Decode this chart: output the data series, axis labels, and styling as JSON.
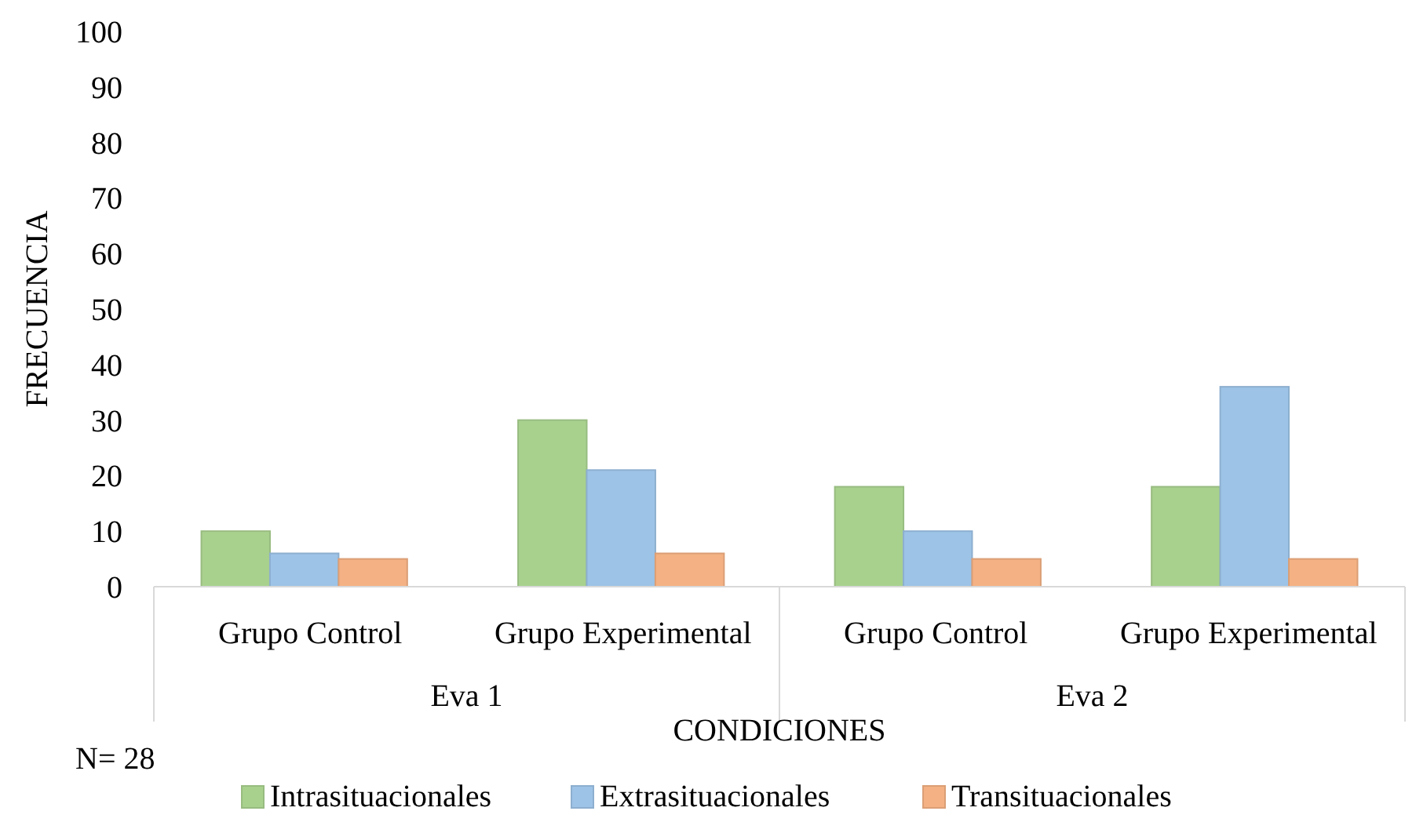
{
  "chart_data": {
    "type": "bar",
    "xlabel": "CONDICIONES",
    "ylabel": "FRECUENCIA",
    "categories": [
      "Grupo Control",
      "Grupo Experimental",
      "Grupo Control",
      "Grupo Experimental"
    ],
    "series": [
      {
        "name": "Intrasituacionales",
        "color": "#a9d18e",
        "values": [
          10,
          30,
          18,
          18
        ]
      },
      {
        "name": "Extrasituacionales",
        "color": "#9dc3e6",
        "values": [
          6,
          21,
          10,
          36
        ]
      },
      {
        "name": "Transituacionales",
        "color": "#f4b183",
        "values": [
          5,
          6,
          5,
          5
        ]
      }
    ],
    "ylim": [
      0,
      100
    ],
    "yticks": [
      0,
      10,
      20,
      30,
      40,
      50,
      60,
      70,
      80,
      90,
      100
    ],
    "grid": false,
    "legend": "bottom",
    "annotations": [
      "Eva 1",
      "Eva 2",
      "N= 28"
    ]
  }
}
